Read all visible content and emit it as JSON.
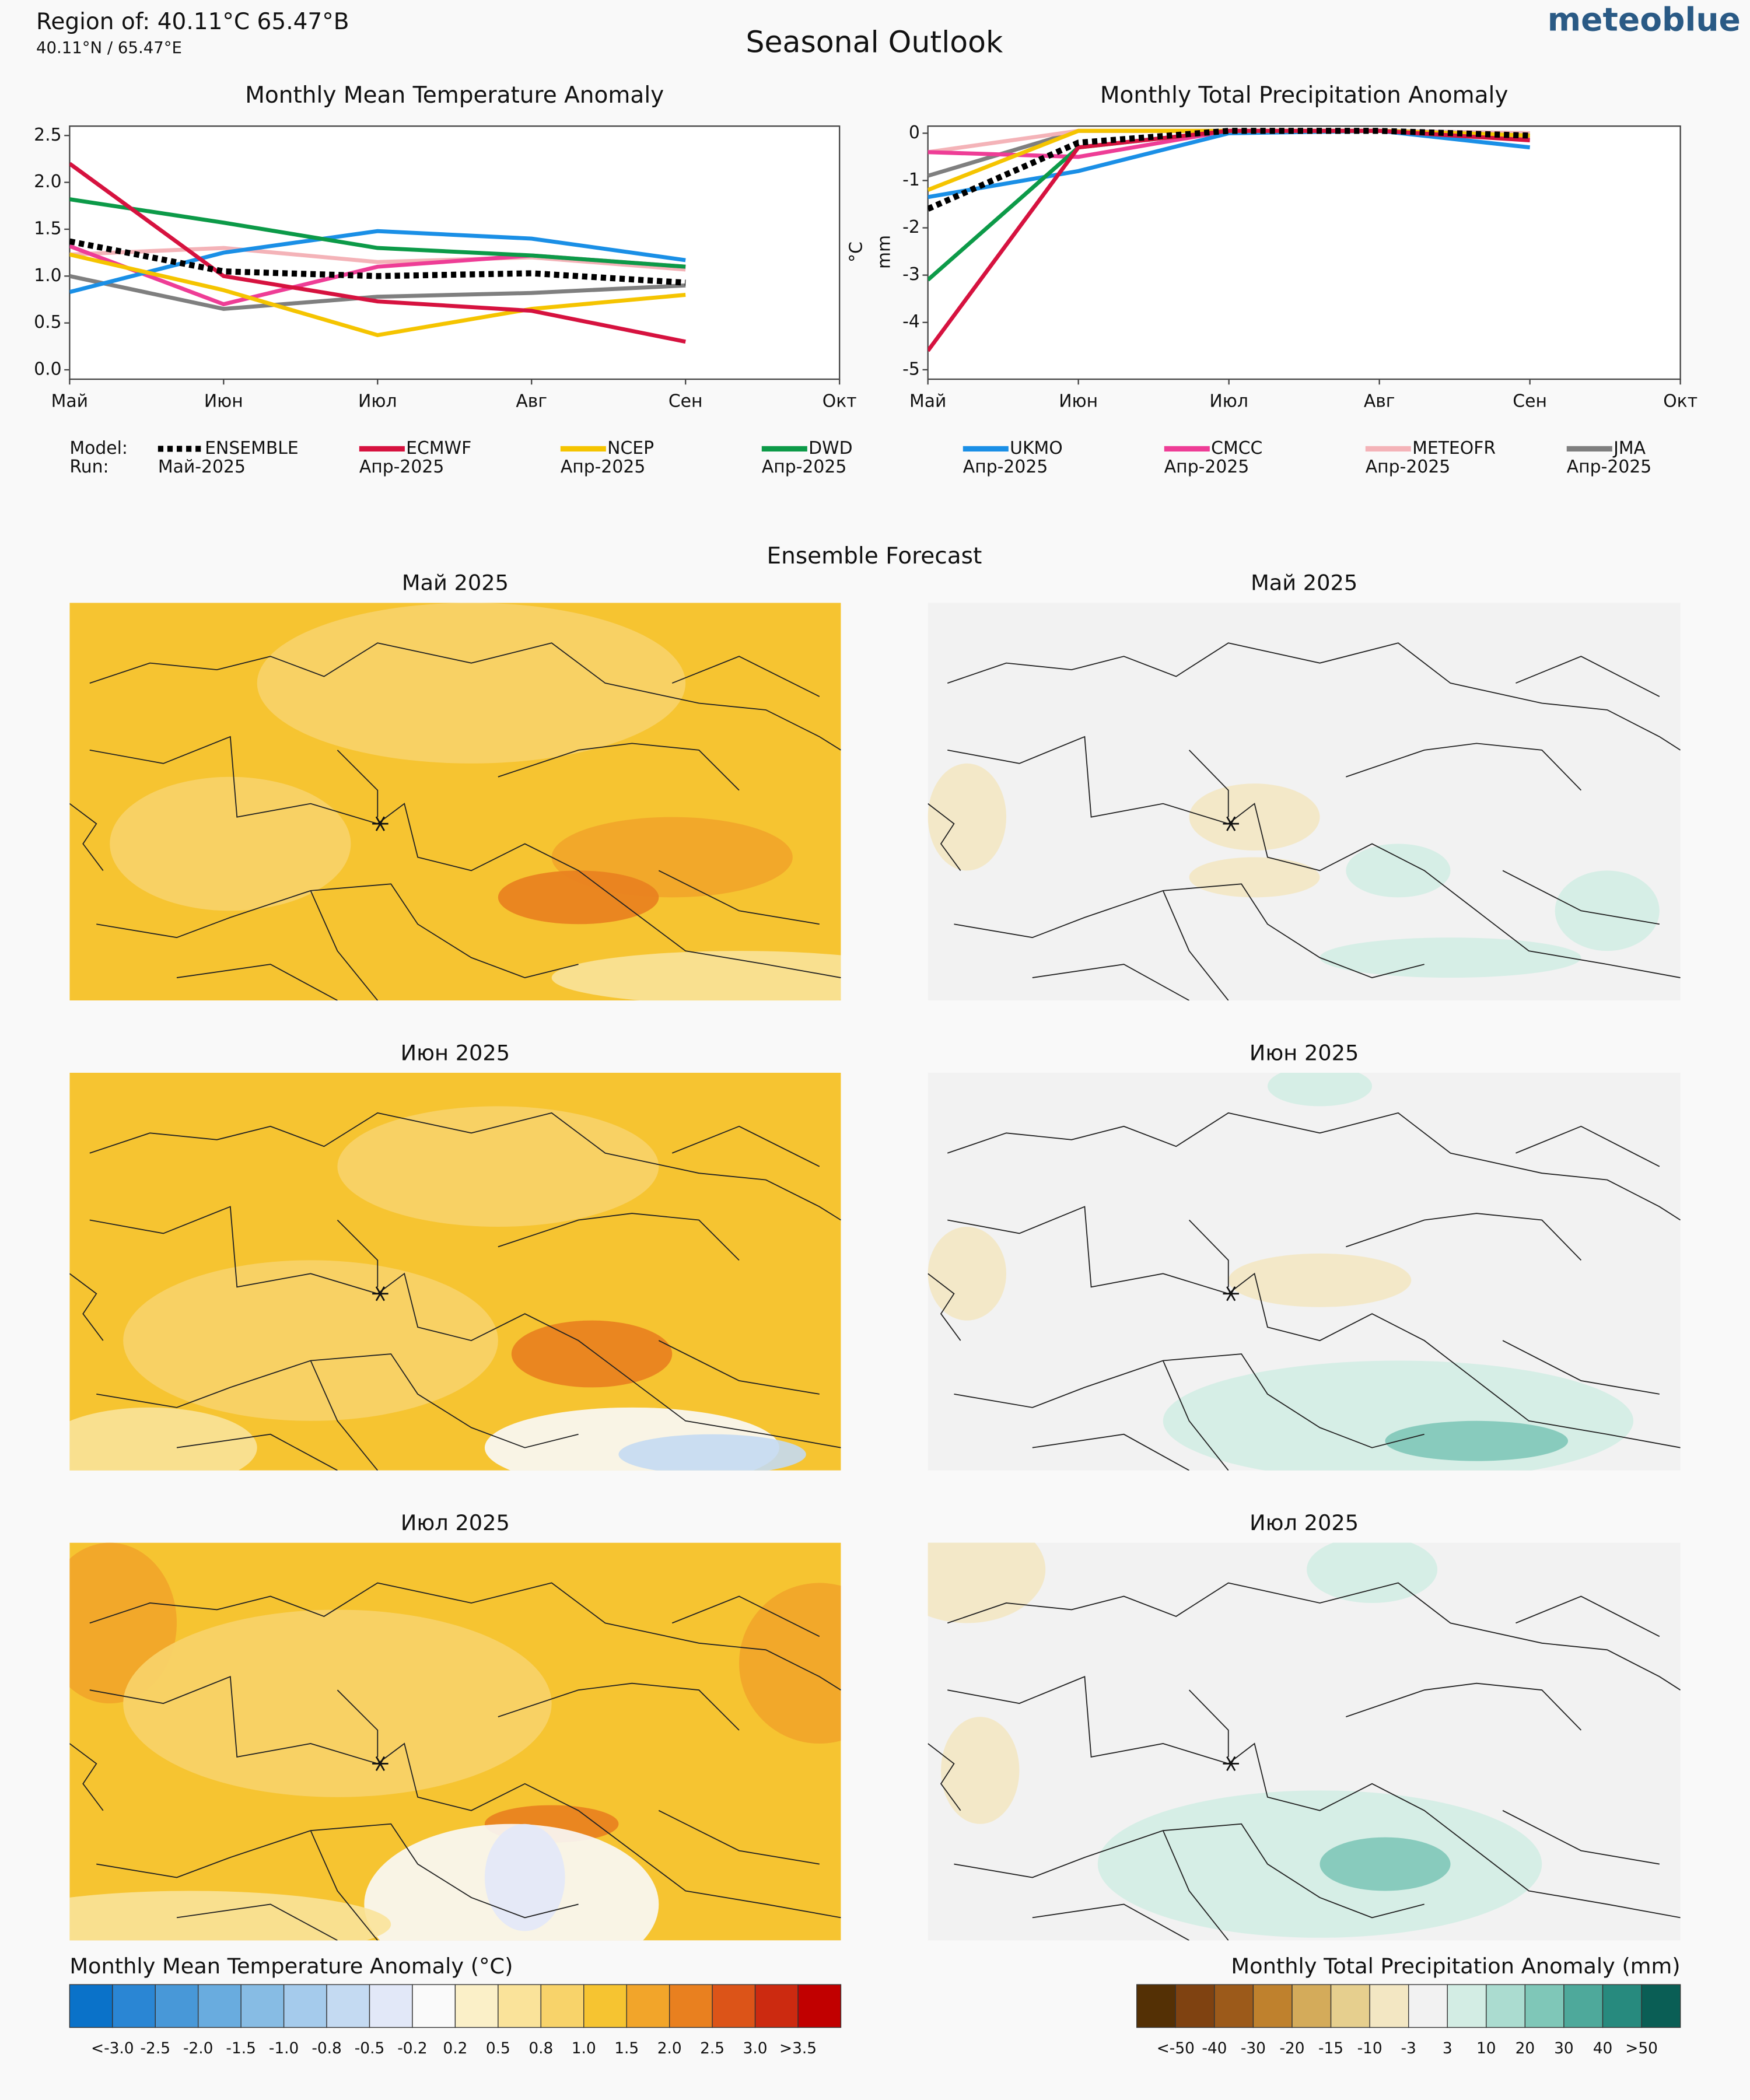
{
  "header": {
    "region": "Region of: 40.11°C 65.47°B",
    "coords": "40.11°N / 65.47°E",
    "title": "Seasonal Outlook",
    "brand": "meteoblue"
  },
  "chart_data": [
    {
      "type": "line",
      "title": "Monthly Mean Temperature Anomaly",
      "ylabel": "°C",
      "categories": [
        "Май",
        "Июн",
        "Июл",
        "Авг",
        "Сен",
        "Окт"
      ],
      "ylim": [
        -0.1,
        2.6
      ],
      "yticks": [
        {
          "value": 0,
          "label": "0.0"
        },
        0.5,
        {
          "value": 1,
          "label": "1.0"
        },
        1.5,
        {
          "value": 2,
          "label": "2.0"
        },
        2.5
      ],
      "series": [
        {
          "name": "ENSEMBLE",
          "color": "#000000",
          "style": "dashed",
          "values": [
            1.37,
            1.05,
            1.0,
            1.03,
            0.93,
            null
          ]
        },
        {
          "name": "ECMWF",
          "color": "#d6123f",
          "values": [
            2.2,
            1.0,
            0.73,
            0.63,
            0.3,
            null
          ]
        },
        {
          "name": "NCEP",
          "color": "#f5c400",
          "values": [
            1.23,
            0.85,
            0.37,
            0.65,
            0.8,
            null
          ]
        },
        {
          "name": "DWD",
          "color": "#0c9a48",
          "values": [
            1.82,
            1.57,
            1.3,
            1.22,
            1.1,
            null
          ]
        },
        {
          "name": "UKMO",
          "color": "#1a8fe6",
          "values": [
            0.83,
            1.25,
            1.48,
            1.4,
            1.17,
            null
          ]
        },
        {
          "name": "CMCC",
          "color": "#ee3d96",
          "values": [
            1.32,
            0.7,
            1.1,
            1.22,
            1.1,
            null
          ]
        },
        {
          "name": "METEOFR",
          "color": "#f4b3b8",
          "values": [
            1.23,
            1.3,
            1.15,
            1.2,
            1.07,
            null
          ]
        },
        {
          "name": "JMA",
          "color": "#7f7f7f",
          "values": [
            1.0,
            0.65,
            0.78,
            0.82,
            0.9,
            null
          ]
        }
      ]
    },
    {
      "type": "line",
      "title": "Monthly Total Precipitation Anomaly",
      "ylabel": "mm",
      "categories": [
        "Май",
        "Июн",
        "Июл",
        "Авг",
        "Сен",
        "Окт"
      ],
      "ylim": [
        -5.2,
        0.15
      ],
      "yticks": [
        -5,
        -4,
        -3,
        -2,
        -1,
        0
      ],
      "series": [
        {
          "name": "ENSEMBLE",
          "color": "#000000",
          "style": "dashed",
          "values": [
            -1.6,
            -0.2,
            0.05,
            0.05,
            -0.05,
            null
          ]
        },
        {
          "name": "ECMWF",
          "color": "#d6123f",
          "values": [
            -4.6,
            -0.3,
            0.05,
            0.05,
            -0.15,
            null
          ]
        },
        {
          "name": "NCEP",
          "color": "#f5c400",
          "values": [
            -1.2,
            0.05,
            0.05,
            0.05,
            -0.05,
            null
          ]
        },
        {
          "name": "DWD",
          "color": "#0c9a48",
          "values": [
            -3.1,
            -0.3,
            0.05,
            0.05,
            -0.05,
            null
          ]
        },
        {
          "name": "UKMO",
          "color": "#1a8fe6",
          "values": [
            -1.35,
            -0.8,
            0,
            0.05,
            -0.3,
            null
          ]
        },
        {
          "name": "CMCC",
          "color": "#ee3d96",
          "values": [
            -0.4,
            -0.5,
            0.05,
            0.05,
            -0.1,
            null
          ]
        },
        {
          "name": "METEOFR",
          "color": "#f4b3b8",
          "values": [
            -0.4,
            0.05,
            0.05,
            0.05,
            0,
            null
          ]
        },
        {
          "name": "JMA",
          "color": "#7f7f7f",
          "values": [
            -0.9,
            0.05,
            0.05,
            0.05,
            0,
            null
          ]
        }
      ]
    }
  ],
  "legend": {
    "model_label": "Model:",
    "run_label": "Run:",
    "runs": [
      "Май-2025",
      "Апр-2025",
      "Апр-2025",
      "Апр-2025",
      "Апр-2025",
      "Апр-2025",
      "Апр-2025",
      "Апр-2025"
    ]
  },
  "ensemble": {
    "title": "Ensemble Forecast",
    "maps": [
      {
        "title": "Май 2025"
      },
      {
        "title": "Май 2025"
      },
      {
        "title": "Июн 2025"
      },
      {
        "title": "Июн 2025"
      },
      {
        "title": "Июл 2025"
      },
      {
        "title": "Июл 2025"
      }
    ]
  },
  "colorbars": [
    {
      "title": "Monthly Mean Temperature Anomaly (°C)",
      "labels": [
        "<-3.0",
        "-2.5",
        "-2.0",
        "-1.5",
        "-1.0",
        "-0.8",
        "-0.5",
        "-0.2",
        "0.2",
        "0.5",
        "0.8",
        "1.0",
        "1.5",
        "2.0",
        "2.5",
        "3.0",
        ">3.5"
      ],
      "colors": [
        "#0a72c9",
        "#2a86d4",
        "#4898d8",
        "#69acdf",
        "#87bce4",
        "#a5cbec",
        "#c4daf2",
        "#e2e8f8",
        "#fafafa",
        "#fbf0c8",
        "#fae39a",
        "#f8d36a",
        "#f6c431",
        "#f2a52a",
        "#e9801f",
        "#dc5418",
        "#cc2a10",
        "#c10000"
      ]
    },
    {
      "title": "Monthly Total Precipitation Anomaly (mm)",
      "labels": [
        "<-50",
        "-40",
        "-30",
        "-20",
        "-15",
        "-10",
        "-3",
        "3",
        "10",
        "20",
        "30",
        "40",
        ">50"
      ],
      "colors": [
        "#543005",
        "#7f4211",
        "#9c5a1a",
        "#bf812d",
        "#d4ab5a",
        "#e6cf8e",
        "#f3e7c3",
        "#f2f2f2",
        "#d3ede4",
        "#abdcd0",
        "#7fc7b8",
        "#4ea99b",
        "#278a7e",
        "#0a5e55"
      ]
    }
  ]
}
